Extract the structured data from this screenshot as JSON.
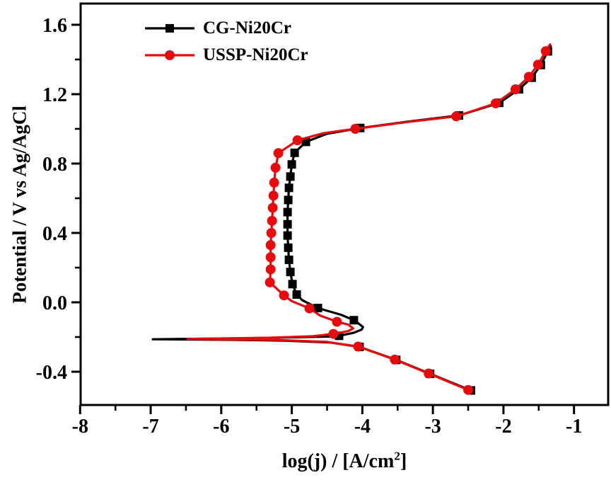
{
  "figure": {
    "background": "#ffffff"
  },
  "chart_data": {
    "type": "line",
    "title": "",
    "xlabel": {
      "pre": "log(j) / [A/cm",
      "sup": "2",
      "post": "]"
    },
    "ylabel": "Potential / V vs Ag/AgCl",
    "x_axis": {
      "range": [
        -8,
        -0.52
      ],
      "major_ticks": [
        -8,
        -7,
        -6,
        -5,
        -4,
        -3,
        -2,
        -1
      ],
      "major_tick_labels": [
        "-8",
        "-7",
        "-6",
        "-5",
        "-4",
        "-3",
        "-2",
        "-1"
      ],
      "minor_ticks": [
        -7.5,
        -6.5,
        -5.5,
        -4.5,
        -3.5,
        -2.5,
        -1.5
      ]
    },
    "y_axis": {
      "range": [
        -0.59,
        1.72
      ],
      "major_ticks": [
        1.6,
        1.2,
        0.8,
        0.4,
        0.0,
        -0.4
      ],
      "major_tick_labels": [
        "1.6",
        "1.2",
        "0.8",
        "0.4",
        "0.0",
        "-0.4"
      ],
      "minor_ticks": [
        1.4,
        1.0,
        0.6,
        0.2,
        -0.2
      ]
    },
    "legend": {
      "position": "top-left"
    },
    "grid": false,
    "series": [
      {
        "name": "CG-Ni20Cr",
        "color": "#000000",
        "marker": "square",
        "curve": [
          [
            -2.46,
            -0.508
          ],
          [
            -3.04,
            -0.412
          ],
          [
            -3.52,
            -0.332
          ],
          [
            -4.04,
            -0.257
          ],
          [
            -4.45,
            -0.232
          ],
          [
            -5.1,
            -0.221
          ],
          [
            -5.9,
            -0.216
          ],
          [
            -6.97,
            -0.213
          ],
          [
            -5.6,
            -0.207
          ],
          [
            -4.85,
            -0.201
          ],
          [
            -4.45,
            -0.197
          ],
          [
            -4.33,
            -0.193
          ],
          [
            -4.12,
            -0.175
          ],
          [
            -4.01,
            -0.157
          ],
          [
            -3.99,
            -0.143
          ],
          [
            -4.06,
            -0.12
          ],
          [
            -4.12,
            -0.103
          ],
          [
            -4.3,
            -0.072
          ],
          [
            -4.63,
            -0.033
          ],
          [
            -4.85,
            0.012
          ],
          [
            -4.93,
            0.045
          ],
          [
            -4.99,
            0.105
          ],
          [
            -5.02,
            0.175
          ],
          [
            -5.04,
            0.245
          ],
          [
            -5.05,
            0.315
          ],
          [
            -5.06,
            0.385
          ],
          [
            -5.06,
            0.45
          ],
          [
            -5.06,
            0.52
          ],
          [
            -5.05,
            0.59
          ],
          [
            -5.04,
            0.66
          ],
          [
            -5.02,
            0.725
          ],
          [
            -5.0,
            0.795
          ],
          [
            -4.96,
            0.862
          ],
          [
            -4.8,
            0.925
          ],
          [
            -4.5,
            0.972
          ],
          [
            -4.03,
            1.005
          ],
          [
            -3.35,
            1.042
          ],
          [
            -2.63,
            1.077
          ],
          [
            -2.06,
            1.15
          ],
          [
            -1.78,
            1.228
          ],
          [
            -1.6,
            1.295
          ],
          [
            -1.47,
            1.368
          ],
          [
            -1.37,
            1.447
          ],
          [
            -1.33,
            1.478
          ]
        ],
        "markers": [
          [
            -2.46,
            -0.508
          ],
          [
            -3.04,
            -0.412
          ],
          [
            -3.52,
            -0.332
          ],
          [
            -4.04,
            -0.257
          ],
          [
            -4.33,
            -0.193
          ],
          [
            -4.12,
            -0.103
          ],
          [
            -4.63,
            -0.033
          ],
          [
            -4.93,
            0.045
          ],
          [
            -4.99,
            0.105
          ],
          [
            -5.02,
            0.175
          ],
          [
            -5.04,
            0.245
          ],
          [
            -5.05,
            0.315
          ],
          [
            -5.06,
            0.385
          ],
          [
            -5.06,
            0.45
          ],
          [
            -5.06,
            0.52
          ],
          [
            -5.05,
            0.59
          ],
          [
            -5.04,
            0.66
          ],
          [
            -5.02,
            0.725
          ],
          [
            -5.0,
            0.795
          ],
          [
            -4.96,
            0.862
          ],
          [
            -4.8,
            0.925
          ],
          [
            -4.03,
            1.005
          ],
          [
            -2.63,
            1.077
          ],
          [
            -2.06,
            1.15
          ],
          [
            -1.78,
            1.228
          ],
          [
            -1.6,
            1.295
          ],
          [
            -1.47,
            1.368
          ],
          [
            -1.37,
            1.447
          ]
        ]
      },
      {
        "name": "USSP-Ni20Cr",
        "color": "#e60b0e",
        "marker": "circle",
        "curve": [
          [
            -2.5,
            -0.505
          ],
          [
            -3.06,
            -0.41
          ],
          [
            -3.54,
            -0.33
          ],
          [
            -4.06,
            -0.255
          ],
          [
            -4.5,
            -0.228
          ],
          [
            -5.2,
            -0.217
          ],
          [
            -6.48,
            -0.211
          ],
          [
            -5.3,
            -0.204
          ],
          [
            -4.7,
            -0.195
          ],
          [
            -4.41,
            -0.182
          ],
          [
            -4.2,
            -0.166
          ],
          [
            -4.13,
            -0.15
          ],
          [
            -4.2,
            -0.128
          ],
          [
            -4.36,
            -0.112
          ],
          [
            -4.6,
            -0.076
          ],
          [
            -4.75,
            -0.035
          ],
          [
            -5.0,
            0.007
          ],
          [
            -5.11,
            0.04
          ],
          [
            -5.31,
            0.115
          ],
          [
            -5.3,
            0.19
          ],
          [
            -5.3,
            0.26
          ],
          [
            -5.3,
            0.33
          ],
          [
            -5.29,
            0.4
          ],
          [
            -5.28,
            0.47
          ],
          [
            -5.27,
            0.545
          ],
          [
            -5.26,
            0.615
          ],
          [
            -5.25,
            0.69
          ],
          [
            -5.23,
            0.776
          ],
          [
            -5.19,
            0.86
          ],
          [
            -4.92,
            0.934
          ],
          [
            -4.55,
            0.975
          ],
          [
            -4.1,
            1.0
          ],
          [
            -3.35,
            1.04
          ],
          [
            -2.67,
            1.072
          ],
          [
            -2.11,
            1.147
          ],
          [
            -1.83,
            1.228
          ],
          [
            -1.64,
            1.3
          ],
          [
            -1.51,
            1.37
          ],
          [
            -1.4,
            1.448
          ],
          [
            -1.34,
            1.487
          ]
        ],
        "markers": [
          [
            -2.5,
            -0.505
          ],
          [
            -3.06,
            -0.41
          ],
          [
            -3.54,
            -0.33
          ],
          [
            -4.06,
            -0.255
          ],
          [
            -4.41,
            -0.182
          ],
          [
            -4.36,
            -0.112
          ],
          [
            -4.75,
            -0.035
          ],
          [
            -5.11,
            0.04
          ],
          [
            -5.31,
            0.115
          ],
          [
            -5.3,
            0.19
          ],
          [
            -5.3,
            0.26
          ],
          [
            -5.3,
            0.33
          ],
          [
            -5.29,
            0.4
          ],
          [
            -5.28,
            0.47
          ],
          [
            -5.27,
            0.545
          ],
          [
            -5.26,
            0.615
          ],
          [
            -5.25,
            0.69
          ],
          [
            -5.23,
            0.776
          ],
          [
            -5.19,
            0.86
          ],
          [
            -4.92,
            0.934
          ],
          [
            -4.1,
            1.0
          ],
          [
            -2.67,
            1.072
          ],
          [
            -2.11,
            1.147
          ],
          [
            -1.83,
            1.228
          ],
          [
            -1.64,
            1.3
          ],
          [
            -1.51,
            1.37
          ],
          [
            -1.4,
            1.448
          ]
        ]
      }
    ]
  }
}
